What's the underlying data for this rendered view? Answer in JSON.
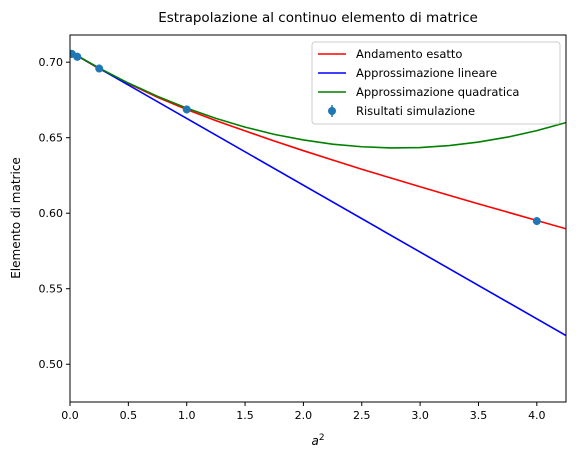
{
  "chart_data": {
    "type": "line",
    "title": "Estrapolazione al continuo elemento di matrice",
    "xlabel": "a",
    "xlabel_sup": "2",
    "ylabel": "Elemento di matrice",
    "xlim": [
      0,
      4.25
    ],
    "ylim": [
      0.475,
      0.718
    ],
    "xticks": [
      0,
      0.5,
      1,
      1.5,
      2,
      2.5,
      3,
      3.5,
      4
    ],
    "xtick_labels": [
      "0.0",
      "0.5",
      "1.0",
      "1.5",
      "2.0",
      "2.5",
      "3.0",
      "3.5",
      "4.0"
    ],
    "yticks": [
      0.5,
      0.55,
      0.6,
      0.65,
      0.7
    ],
    "ytick_labels": [
      "0.50",
      "0.55",
      "0.60",
      "0.65",
      "0.70"
    ],
    "grid": false,
    "legend_position": "top-right",
    "series": [
      {
        "name": "Andamento esatto",
        "kind": "line",
        "color": "#ff0000",
        "x": [
          0,
          0.25,
          0.5,
          0.75,
          1,
          1.25,
          1.5,
          1.75,
          2,
          2.25,
          2.5,
          2.75,
          3,
          3.25,
          3.5,
          3.75,
          4,
          4.25
        ],
        "y": [
          0.707,
          0.6957,
          0.6859,
          0.6768,
          0.6687,
          0.6613,
          0.6545,
          0.6478,
          0.6414,
          0.6352,
          0.6291,
          0.6233,
          0.6175,
          0.6118,
          0.6062,
          0.6007,
          0.5952,
          0.5897
        ]
      },
      {
        "name": "Approssimazione lineare",
        "kind": "line",
        "color": "#0000ff",
        "x": [
          0,
          4.25
        ],
        "y": [
          0.707,
          0.519
        ]
      },
      {
        "name": "Approssimazione quadratica",
        "kind": "line",
        "color": "#008000",
        "x": [
          0,
          0.25,
          0.5,
          0.75,
          1,
          1.25,
          1.5,
          1.75,
          2,
          2.25,
          2.5,
          2.75,
          3,
          3.25,
          3.5,
          3.75,
          4,
          4.25
        ],
        "y": [
          0.707,
          0.6961,
          0.6862,
          0.6774,
          0.6696,
          0.6628,
          0.657,
          0.6522,
          0.6485,
          0.6457,
          0.644,
          0.6432,
          0.6435,
          0.6448,
          0.6471,
          0.6504,
          0.6547,
          0.66
        ]
      },
      {
        "name": "Risultati simulazione",
        "kind": "scatter",
        "color": "#1f77b4",
        "x": [
          0.0156,
          0.0625,
          0.25,
          1,
          4
        ],
        "y": [
          0.7055,
          0.7036,
          0.6958,
          0.6687,
          0.5948
        ]
      }
    ]
  }
}
